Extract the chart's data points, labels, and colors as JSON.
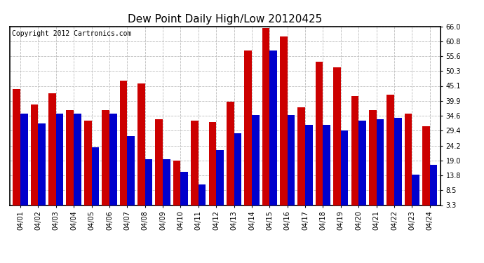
{
  "title": "Dew Point Daily High/Low 20120425",
  "copyright": "Copyright 2012 Cartronics.com",
  "dates": [
    "04/01",
    "04/02",
    "04/03",
    "04/04",
    "04/05",
    "04/06",
    "04/07",
    "04/08",
    "04/09",
    "04/10",
    "04/11",
    "04/12",
    "04/13",
    "04/14",
    "04/15",
    "04/16",
    "04/17",
    "04/18",
    "04/19",
    "04/20",
    "04/21",
    "04/22",
    "04/23",
    "04/24"
  ],
  "high_values": [
    44.0,
    38.5,
    42.5,
    36.5,
    33.0,
    36.5,
    47.0,
    46.0,
    33.5,
    19.0,
    33.0,
    32.5,
    39.5,
    57.5,
    65.5,
    62.5,
    37.5,
    53.5,
    51.5,
    41.5,
    36.5,
    42.0,
    35.5,
    31.0
  ],
  "low_values": [
    35.5,
    32.0,
    35.5,
    35.5,
    23.5,
    35.5,
    27.5,
    19.5,
    19.5,
    15.0,
    10.5,
    22.5,
    28.5,
    35.0,
    57.5,
    35.0,
    31.5,
    31.5,
    29.5,
    33.0,
    33.5,
    34.0,
    14.0,
    17.5
  ],
  "bar_color_high": "#cc0000",
  "bar_color_low": "#0000cc",
  "background_color": "#ffffff",
  "plot_bg_color": "#ffffff",
  "grid_color": "#bbbbbb",
  "title_fontsize": 11,
  "copyright_fontsize": 7,
  "ylim_min": 3.3,
  "ylim_max": 66.0,
  "yticks": [
    3.3,
    8.5,
    13.8,
    19.0,
    24.2,
    29.4,
    34.6,
    39.9,
    45.1,
    50.3,
    55.6,
    60.8,
    66.0
  ]
}
